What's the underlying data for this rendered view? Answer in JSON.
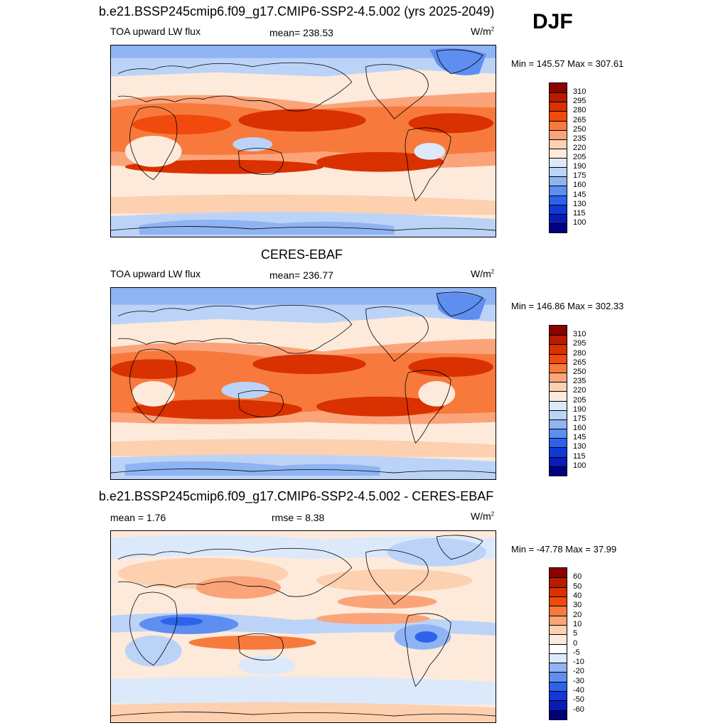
{
  "season": "DJF",
  "units_base": "W/m",
  "units_exp": "2",
  "panels": [
    {
      "title": "b.e21.BSSP245cmip6.f09_g17.CMIP6-SSP2-4.5.002 (yrs 2025-2049)",
      "left_label": "TOA upward LW flux",
      "center_label": "mean= 238.53",
      "minmax": "Min = 145.57 Max = 307.61"
    },
    {
      "title": "CERES-EBAF",
      "left_label": "TOA upward LW flux",
      "center_label": "mean= 236.77",
      "minmax": "Min = 146.86 Max = 302.33"
    },
    {
      "title": "b.e21.BSSP245cmip6.f09_g17.CMIP6-SSP2-4.5.002 - CERES-EBAF",
      "left_label": "mean =   1.76",
      "center_label": "rmse =   8.38",
      "minmax": "Min = -47.78 Max =  37.99"
    }
  ],
  "colorbars": [
    {
      "labels": [
        "310",
        "295",
        "280",
        "265",
        "250",
        "235",
        "220",
        "205",
        "190",
        "175",
        "160",
        "145",
        "130",
        "115",
        "100"
      ],
      "colors": [
        "#8b0000",
        "#b81b00",
        "#d93100",
        "#f04a0c",
        "#f77a3c",
        "#fba47a",
        "#fdd0b0",
        "#fdeadb",
        "#dbe9fb",
        "#bcd3f8",
        "#8fb4f3",
        "#5d8ef0",
        "#2d62ea",
        "#1039d8",
        "#0a1ab8",
        "#000080"
      ]
    },
    {
      "labels": [
        "310",
        "295",
        "280",
        "265",
        "250",
        "235",
        "220",
        "205",
        "190",
        "175",
        "160",
        "145",
        "130",
        "115",
        "100"
      ],
      "colors": [
        "#8b0000",
        "#b81b00",
        "#d93100",
        "#f04a0c",
        "#f77a3c",
        "#fba47a",
        "#fdd0b0",
        "#fdeadb",
        "#dbe9fb",
        "#bcd3f8",
        "#8fb4f3",
        "#5d8ef0",
        "#2d62ea",
        "#1039d8",
        "#0a1ab8",
        "#000080"
      ]
    },
    {
      "labels": [
        "60",
        "50",
        "40",
        "30",
        "20",
        "10",
        "5",
        "0",
        "-5",
        "-10",
        "-20",
        "-30",
        "-40",
        "-50",
        "-60"
      ],
      "colors": [
        "#8b0000",
        "#b81b00",
        "#d93100",
        "#f04a0c",
        "#f77a3c",
        "#fba47a",
        "#fdd0b0",
        "#fdeadb",
        "#ffffff",
        "#dbe9fb",
        "#8fb4f3",
        "#5d8ef0",
        "#2d62ea",
        "#1039d8",
        "#0a1ab8",
        "#000080"
      ]
    }
  ]
}
